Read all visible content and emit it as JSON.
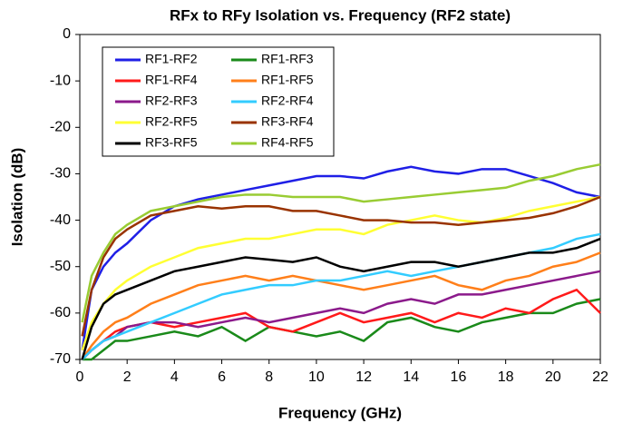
{
  "chart_data": {
    "type": "line",
    "title": "RFx to RFy Isolation vs. Frequency (RF2 state)",
    "x_label": "Frequency (GHz)",
    "y_label": "Isolation (dB)",
    "x": [
      0.1,
      0.5,
      1,
      1.5,
      2,
      3,
      4,
      5,
      6,
      7,
      8,
      9,
      10,
      11,
      12,
      13,
      14,
      15,
      16,
      17,
      18,
      19,
      20,
      21,
      22
    ],
    "xlim": [
      0,
      22
    ],
    "xticks": [
      0,
      2,
      4,
      6,
      8,
      10,
      12,
      14,
      16,
      18,
      20,
      22
    ],
    "ylim": [
      -70,
      0
    ],
    "yticks": [
      -70,
      -60,
      -50,
      -40,
      -30,
      -20,
      -10,
      0
    ],
    "grid": false,
    "legend": "upper left",
    "series": [
      {
        "name": "RF1-RF2",
        "color": "#1f1fe6",
        "values": [
          -68,
          -55,
          -50,
          -47,
          -45,
          -40,
          -37,
          -35.5,
          -34.5,
          -33.5,
          -32.5,
          -31.5,
          -30.5,
          -30.5,
          -31,
          -29.5,
          -28.5,
          -29.5,
          -30,
          -29,
          -29,
          -30.5,
          -32,
          -34,
          -35
        ]
      },
      {
        "name": "RF1-RF3",
        "color": "#1a8a1a",
        "values": [
          -70,
          -70,
          -68,
          -66,
          -66,
          -65,
          -64,
          -65,
          -63,
          -66,
          -63,
          -64,
          -65,
          -64,
          -66,
          -62,
          -61,
          -63,
          -64,
          -62,
          -61,
          -60,
          -60,
          -58,
          -57
        ]
      },
      {
        "name": "RF1-RF4",
        "color": "#ff1a1a",
        "values": [
          -70,
          -68,
          -66,
          -64,
          -63,
          -62,
          -63,
          -62,
          -61,
          -60,
          -63,
          -64,
          -62,
          -60,
          -62,
          -61,
          -60,
          -62,
          -60,
          -61,
          -59,
          -60,
          -57,
          -55,
          -60
        ]
      },
      {
        "name": "RF1-RF5",
        "color": "#ff7f1a",
        "values": [
          -70,
          -67,
          -64,
          -62,
          -61,
          -58,
          -56,
          -54,
          -53,
          -52,
          -53,
          -52,
          -53,
          -54,
          -55,
          -54,
          -53,
          -52,
          -54,
          -55,
          -53,
          -52,
          -50,
          -49,
          -47
        ]
      },
      {
        "name": "RF2-RF3",
        "color": "#8b1a8b",
        "values": [
          -70,
          -68,
          -66,
          -65,
          -63,
          -62,
          -62,
          -63,
          -62,
          -61,
          -62,
          -61,
          -60,
          -59,
          -60,
          -58,
          -57,
          -58,
          -56,
          -56,
          -55,
          -54,
          -53,
          -52,
          -51
        ]
      },
      {
        "name": "RF2-RF4",
        "color": "#33ccff",
        "values": [
          -70,
          -68,
          -66,
          -65,
          -64,
          -62,
          -60,
          -58,
          -56,
          -55,
          -54,
          -54,
          -53,
          -53,
          -52,
          -51,
          -52,
          -51,
          -50,
          -49,
          -48,
          -47,
          -46,
          -44,
          -43
        ]
      },
      {
        "name": "RF2-RF5",
        "color": "#ffff33",
        "values": [
          -68,
          -62,
          -58,
          -55,
          -53,
          -50,
          -48,
          -46,
          -45,
          -44,
          -44,
          -43,
          -42,
          -42,
          -43,
          -41,
          -40,
          -39,
          -40,
          -40.5,
          -39.5,
          -38,
          -37,
          -36,
          -35
        ]
      },
      {
        "name": "RF3-RF4",
        "color": "#993300",
        "values": [
          -65,
          -55,
          -48,
          -44,
          -42,
          -39,
          -38,
          -37,
          -37.5,
          -37,
          -37,
          -38,
          -38,
          -39,
          -40,
          -40,
          -40.5,
          -40.5,
          -41,
          -40.5,
          -40,
          -39.5,
          -38.5,
          -37,
          -35
        ]
      },
      {
        "name": "RF3-RF5",
        "color": "#000000",
        "values": [
          -70,
          -63,
          -58,
          -56,
          -55,
          -53,
          -51,
          -50,
          -49,
          -48,
          -48.5,
          -49,
          -48,
          -50,
          -51,
          -50,
          -49,
          -49,
          -50,
          -49,
          -48,
          -47,
          -47,
          -46,
          -44
        ]
      },
      {
        "name": "RF4-RF5",
        "color": "#99cc33",
        "values": [
          -62,
          -52,
          -47,
          -43,
          -41,
          -38,
          -37,
          -36,
          -35,
          -34.5,
          -34.5,
          -35,
          -35,
          -35,
          -36,
          -35.5,
          -35,
          -34.5,
          -34,
          -33.5,
          -33,
          -31.5,
          -30.5,
          -29,
          -28
        ]
      }
    ]
  }
}
